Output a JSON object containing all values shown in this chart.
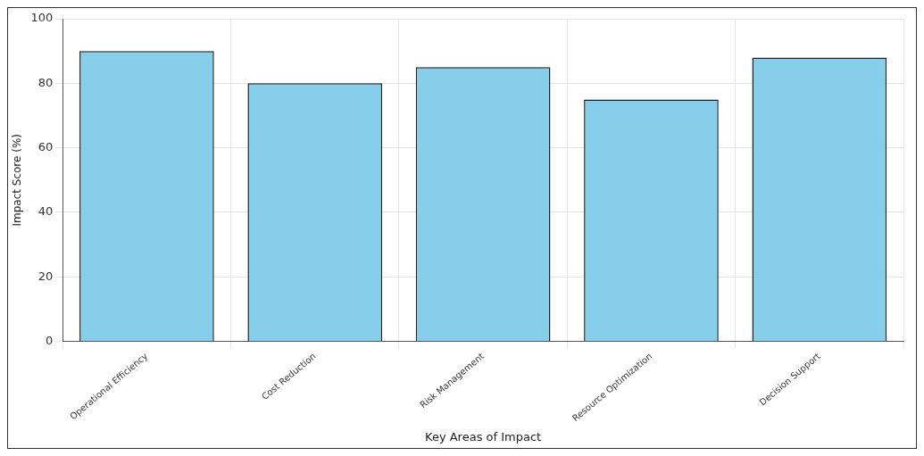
{
  "chart_data": {
    "type": "bar",
    "xlabel": "Key Areas of Impact",
    "ylabel": "Impact Score (%)",
    "categories": [
      "Operational Efficiency",
      "Cost Reduction",
      "Risk Management",
      "Resource Optimization",
      "Decision Support"
    ],
    "values": [
      90,
      80,
      85,
      75,
      88
    ],
    "color": "#87ceeb",
    "ylim": [
      0,
      100
    ],
    "yticks": [
      0,
      20,
      40,
      60,
      80,
      100
    ],
    "grid": true
  }
}
